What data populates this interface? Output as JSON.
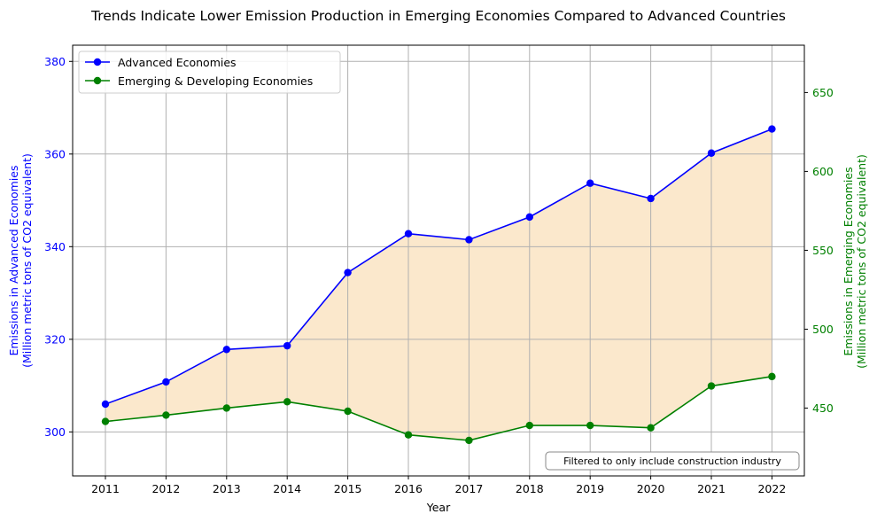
{
  "chart_data": {
    "type": "line",
    "title": "Trends Indicate Lower Emission Production in Emerging Economies Compared to Advanced Countries",
    "xlabel": "Year",
    "ylabel_left": [
      "Emissions in Advanced Economies",
      "(Million metric tons of CO2 equivalent)"
    ],
    "ylabel_right": [
      "Emissions in Emerging Economies",
      "(Million metric tons of CO2 equivalent)"
    ],
    "categories": [
      "2011",
      "2012",
      "2013",
      "2014",
      "2015",
      "2016",
      "2017",
      "2018",
      "2019",
      "2020",
      "2021",
      "2022"
    ],
    "series": [
      {
        "name": "Advanced Economies",
        "axis": "left",
        "color": "#0000ff",
        "values": [
          306.0,
          310.8,
          317.8,
          318.6,
          334.4,
          342.8,
          341.5,
          346.4,
          353.7,
          350.4,
          360.2,
          365.4
        ]
      },
      {
        "name": "Emerging & Developing Economies",
        "axis": "right",
        "color": "#008000",
        "values": [
          441.5,
          445.5,
          450.0,
          454.0,
          448.0,
          433.0,
          429.5,
          439.0,
          439.0,
          437.5,
          464.0,
          470.0
        ]
      }
    ],
    "fill_between_color": "#fbe8cc",
    "y_left": {
      "lim": [
        290.5,
        383.5
      ],
      "ticks": [
        300,
        320,
        340,
        360,
        380
      ],
      "tick_color": "#0000ff"
    },
    "y_right": {
      "lim": [
        407,
        680
      ],
      "ticks": [
        450,
        500,
        550,
        600,
        650
      ],
      "tick_color": "#008000"
    },
    "grid": true,
    "legend_position": "upper-left",
    "annotation": "Filtered to only include construction industry",
    "annotation_position": "lower-right"
  }
}
